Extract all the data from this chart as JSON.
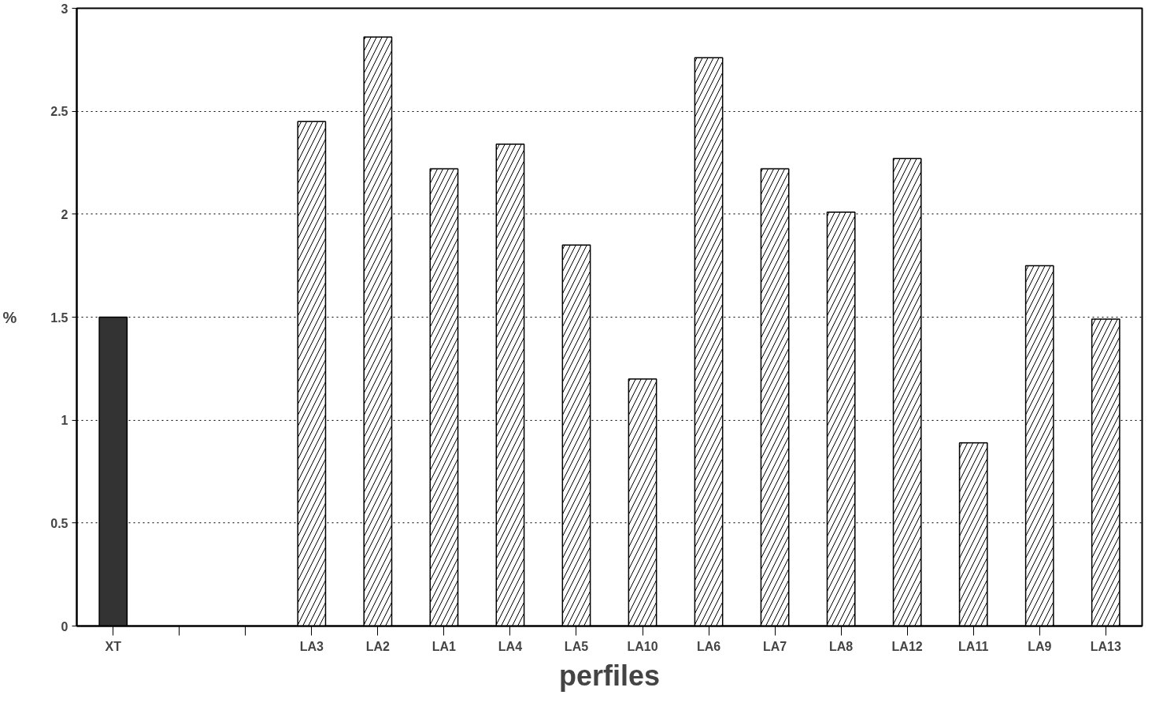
{
  "chart_data": {
    "type": "bar",
    "xlabel": "perfiles",
    "ylabel": "%",
    "categories": [
      "XT",
      null,
      null,
      "LA3",
      "LA2",
      "LA1",
      "LA4",
      "LA5",
      "LA10",
      "LA6",
      "LA7",
      "LA8",
      "LA12",
      "LA11",
      "LA9",
      "LA13"
    ],
    "values": [
      1.5,
      null,
      null,
      2.45,
      2.86,
      2.22,
      2.34,
      1.85,
      1.2,
      2.76,
      2.22,
      2.01,
      2.27,
      0.89,
      1.75,
      1.49
    ],
    "colors": [
      "#333333",
      null,
      null,
      "#ffffff",
      "#ffffff",
      "#ffffff",
      "#ffffff",
      "#ffffff",
      "#ffffff",
      "#ffffff",
      "#ffffff",
      "#ffffff",
      "#ffffff",
      "#ffffff",
      "#ffffff",
      "#ffffff"
    ],
    "ylim": [
      0,
      3
    ],
    "yticks": [
      0,
      0.5,
      1,
      1.5,
      2,
      2.5,
      3
    ],
    "grid": "y"
  }
}
